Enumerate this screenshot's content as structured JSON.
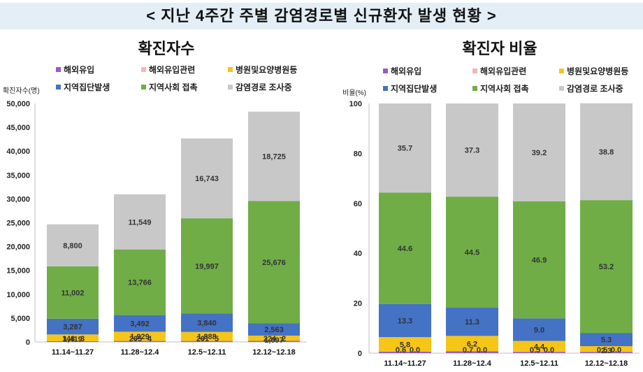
{
  "banner_title": "< 지난 4주간 주별 감염경로별 신규환자 발생 현황 >",
  "legend": [
    {
      "label": "해외유입",
      "color": "#9b59c6"
    },
    {
      "label": "해외유입관련",
      "color": "#f4b6b6"
    },
    {
      "label": "병원및요양병원등",
      "color": "#f5c518"
    },
    {
      "label": "지역집단발생",
      "color": "#4472c4"
    },
    {
      "label": "지역사회 접촉",
      "color": "#70ad47"
    },
    {
      "label": "감염경로 조사중",
      "color": "#c8c8c8"
    }
  ],
  "chart_data": [
    {
      "type": "bar",
      "stacked": true,
      "title": "확진자수",
      "ylabel": "확진자수(명)",
      "ylim": [
        0,
        50000
      ],
      "yticks": [
        "0",
        "5,000",
        "10,000",
        "15,000",
        "20,000",
        "25,000",
        "30,000",
        "35,000",
        "40,000",
        "45,000",
        "50,000"
      ],
      "ytick_values": [
        0,
        5000,
        10000,
        15000,
        20000,
        25000,
        30000,
        35000,
        40000,
        45000,
        50000
      ],
      "categories": [
        "11.14~11.27",
        "11.28~12.4",
        "12.5~12.11",
        "12.12~12.18"
      ],
      "series": [
        {
          "name": "해외유입",
          "values": [
            148,
            205,
            201,
            224
          ],
          "labels": [
            "148",
            "205",
            "201",
            "224"
          ]
        },
        {
          "name": "해외유입관련",
          "values": [
            3,
            4,
            5,
            2
          ],
          "labels": [
            "3",
            "4",
            "5",
            "2"
          ]
        },
        {
          "name": "병원및요양병원등",
          "values": [
            1419,
            1929,
            1888,
            1097
          ],
          "labels": [
            "1,419",
            "1,929",
            "1,888",
            "1,097"
          ]
        },
        {
          "name": "지역집단발생",
          "values": [
            3287,
            3492,
            3840,
            2563
          ],
          "labels": [
            "3,287",
            "3,492",
            "3,840",
            "2,563"
          ]
        },
        {
          "name": "지역사회 접촉",
          "values": [
            11002,
            13766,
            19997,
            25676
          ],
          "labels": [
            "11,002",
            "13,766",
            "19,997",
            "25,676"
          ]
        },
        {
          "name": "감염경로 조사중",
          "values": [
            8800,
            11549,
            16743,
            18725
          ],
          "labels": [
            "8,800",
            "11,549",
            "16,743",
            "18,725"
          ]
        }
      ]
    },
    {
      "type": "bar",
      "stacked": true,
      "title": "확진자 비율",
      "ylabel": "비율(%)",
      "ylim": [
        0,
        100
      ],
      "yticks": [
        "0",
        "20",
        "40",
        "60",
        "80",
        "100"
      ],
      "ytick_values": [
        0,
        20,
        40,
        60,
        80,
        100
      ],
      "categories": [
        "11.14~11.27",
        "11.28~12.4",
        "12.5~12.11",
        "12.12~12.18"
      ],
      "series": [
        {
          "name": "해외유입",
          "values": [
            0.6,
            0.7,
            0.5,
            0.5
          ],
          "labels": [
            "0.6",
            "0.7",
            "0.5",
            "0.5"
          ]
        },
        {
          "name": "해외유입관련",
          "values": [
            0.0,
            0.0,
            0.0,
            0.0
          ],
          "labels": [
            "0.0",
            "0.0",
            "0.0",
            "0.0"
          ]
        },
        {
          "name": "병원및요양병원등",
          "values": [
            5.8,
            6.2,
            4.4,
            2.3
          ],
          "labels": [
            "5.8",
            "6.2",
            "4.4",
            "2.3"
          ]
        },
        {
          "name": "지역집단발생",
          "values": [
            13.3,
            11.3,
            9.0,
            5.3
          ],
          "labels": [
            "13.3",
            "11.3",
            "9.0",
            "5.3"
          ]
        },
        {
          "name": "지역사회 접촉",
          "values": [
            44.6,
            44.5,
            46.9,
            53.2
          ],
          "labels": [
            "44.6",
            "44.5",
            "46.9",
            "53.2"
          ]
        },
        {
          "name": "감염경로 조사중",
          "values": [
            35.7,
            37.3,
            39.2,
            38.8
          ],
          "labels": [
            "35.7",
            "37.3",
            "39.2",
            "38.8"
          ]
        }
      ]
    }
  ]
}
